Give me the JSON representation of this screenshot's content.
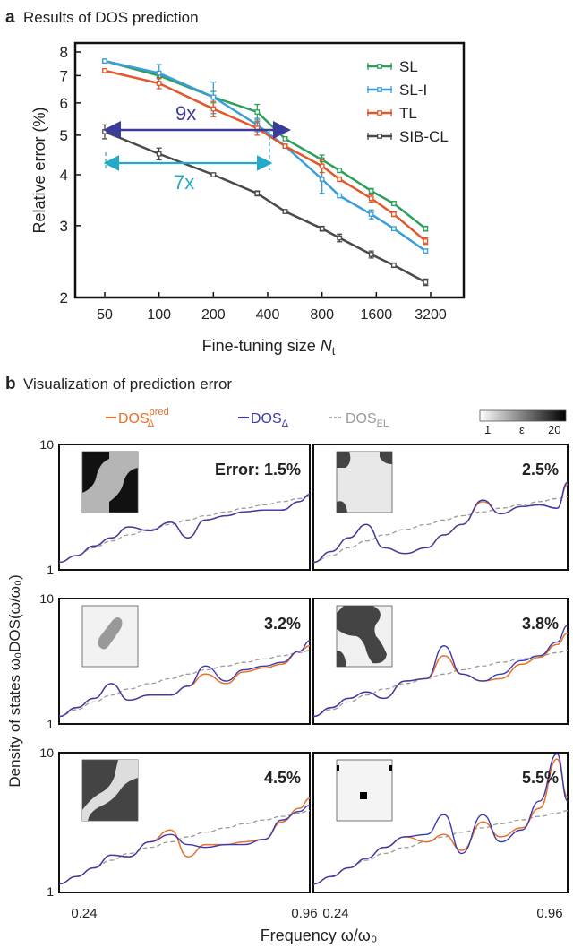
{
  "panel_a": {
    "letter": "a",
    "title": "Results of DOS prediction",
    "ylabel": "Relative error (%)",
    "xlabel_main": "Fine-tuning size ",
    "xlabel_var": "N",
    "xlabel_sub": "t",
    "annotation_9x": "9x",
    "annotation_7x": "7x",
    "colors": {
      "SL": "#2ca05a",
      "SL-I": "#3a9ed8",
      "TL": "#e2572b",
      "SIB-CL": "#4a4a4a",
      "arrow9": "#3b3b9a",
      "arrow7": "#25a9c9"
    }
  },
  "panel_b": {
    "letter": "b",
    "title": "Visualization of prediction error",
    "legend": {
      "pred_main": "DOS",
      "pred_sup": "pred",
      "pred_sub": "Δ",
      "true_main": "DOS",
      "true_sub": "Δ",
      "el_main": "DOS",
      "el_sub": "EL"
    },
    "colorbar": {
      "min": "1",
      "label": "ε",
      "max": "20"
    },
    "ylabel": "Density of states ω₀DOS(ω/ω₀)",
    "xlabel": "Frequency ω/ω₀",
    "ytick_top": "10",
    "ytick_bottom": "1",
    "xtick_left": "0.24",
    "xtick_right": "0.96",
    "colors": {
      "pred": "#e8702a",
      "true": "#3a3ab0",
      "el": "#9a9a9a"
    },
    "panel_labels": [
      "Error: 1.5%",
      "2.5%",
      "3.2%",
      "3.8%",
      "4.5%",
      "5.5%"
    ]
  },
  "chart_data": [
    {
      "type": "line",
      "title": "Results of DOS prediction",
      "xlabel": "Fine-tuning size Nt",
      "ylabel": "Relative error (%)",
      "x_scale": "log",
      "y_scale": "log",
      "xticks": [
        "50",
        "100",
        "200",
        "400",
        "800",
        "1600",
        "3200"
      ],
      "yticks": [
        "2",
        "3",
        "4",
        "5",
        "6",
        "7",
        "8"
      ],
      "x": [
        50,
        100,
        200,
        350,
        500,
        800,
        1000,
        1500,
        2000,
        3000
      ],
      "ylim": [
        2,
        8
      ],
      "legend_position": "top-right",
      "series": [
        {
          "name": "SL",
          "y": [
            7.6,
            7.0,
            6.2,
            5.7,
            4.9,
            4.35,
            4.1,
            3.65,
            3.4,
            2.95
          ],
          "err": [
            0.05,
            0.12,
            0.2,
            0.25,
            0.05,
            0.12,
            0.05,
            0.05,
            0.04,
            0.04
          ]
        },
        {
          "name": "SL-I",
          "y": [
            7.6,
            7.1,
            6.2,
            5.3,
            4.7,
            3.9,
            3.55,
            3.2,
            2.95,
            2.6
          ],
          "err": [
            0.05,
            0.35,
            0.55,
            0.2,
            0.05,
            0.3,
            0.03,
            0.08,
            0.03,
            0.03
          ]
        },
        {
          "name": "TL",
          "y": [
            7.2,
            6.7,
            5.8,
            5.2,
            4.7,
            4.2,
            3.9,
            3.5,
            3.2,
            2.75
          ],
          "err": [
            0.05,
            0.2,
            0.25,
            0.2,
            0.05,
            0.15,
            0.05,
            0.07,
            0.04,
            0.05
          ]
        },
        {
          "name": "SIB-CL",
          "y": [
            5.1,
            4.5,
            4.0,
            3.6,
            3.25,
            2.95,
            2.8,
            2.55,
            2.4,
            2.18
          ],
          "err": [
            0.2,
            0.15,
            0.03,
            0.05,
            0.03,
            0.04,
            0.06,
            0.05,
            0.03,
            0.04
          ]
        }
      ]
    },
    {
      "type": "line",
      "title": "Visualization of prediction error",
      "xlabel": "Frequency ω/ω₀",
      "ylabel": "Density of states ω₀DOS(ω/ω₀)",
      "y_scale": "log",
      "xlim": [
        0.24,
        0.96
      ],
      "ylim": [
        1,
        10
      ],
      "panels": [
        {
          "label": "Error: 1.5%",
          "x": [
            0.24,
            0.29,
            0.34,
            0.39,
            0.44,
            0.5,
            0.56,
            0.61,
            0.66,
            0.72,
            0.77,
            0.83,
            0.88,
            0.93,
            0.96
          ],
          "dos_pred": [
            1.15,
            1.3,
            1.55,
            1.8,
            2.2,
            2.05,
            2.4,
            1.8,
            2.5,
            2.7,
            2.9,
            3.0,
            3.0,
            3.5,
            4.0
          ],
          "dos_true": [
            1.15,
            1.3,
            1.55,
            1.8,
            2.2,
            2.05,
            2.4,
            1.8,
            2.5,
            2.7,
            2.9,
            3.0,
            3.0,
            3.5,
            4.0
          ],
          "dos_el": [
            1.15,
            1.3,
            1.5,
            1.7,
            1.9,
            2.1,
            2.3,
            2.5,
            2.7,
            2.9,
            3.1,
            3.3,
            3.5,
            3.7,
            3.85
          ]
        },
        {
          "label": "2.5%",
          "x": [
            0.24,
            0.29,
            0.34,
            0.39,
            0.44,
            0.5,
            0.56,
            0.61,
            0.66,
            0.72,
            0.77,
            0.83,
            0.88,
            0.93,
            0.96
          ],
          "dos_pred": [
            1.15,
            1.4,
            1.8,
            2.3,
            1.5,
            1.35,
            1.5,
            1.9,
            2.3,
            3.5,
            2.8,
            3.2,
            3.3,
            3.1,
            4.8
          ],
          "dos_true": [
            1.15,
            1.4,
            1.8,
            2.3,
            1.5,
            1.35,
            1.5,
            1.9,
            2.3,
            3.6,
            2.8,
            3.2,
            3.3,
            3.1,
            5.0
          ],
          "dos_el": [
            1.15,
            1.3,
            1.5,
            1.7,
            1.9,
            2.1,
            2.3,
            2.5,
            2.7,
            2.9,
            3.1,
            3.3,
            3.5,
            3.7,
            3.85
          ]
        },
        {
          "label": "3.2%",
          "x": [
            0.24,
            0.29,
            0.34,
            0.39,
            0.44,
            0.5,
            0.56,
            0.61,
            0.66,
            0.72,
            0.77,
            0.83,
            0.88,
            0.93,
            0.96
          ],
          "dos_pred": [
            1.15,
            1.35,
            1.6,
            2.1,
            1.55,
            1.7,
            1.7,
            2.0,
            2.5,
            2.1,
            2.6,
            2.8,
            3.0,
            3.8,
            4.2
          ],
          "dos_true": [
            1.15,
            1.35,
            1.6,
            2.1,
            1.55,
            1.7,
            1.7,
            2.0,
            2.9,
            2.2,
            2.7,
            2.9,
            3.1,
            3.8,
            4.6
          ],
          "dos_el": [
            1.15,
            1.3,
            1.5,
            1.7,
            1.9,
            2.1,
            2.3,
            2.5,
            2.7,
            2.9,
            3.1,
            3.3,
            3.5,
            3.7,
            3.85
          ]
        },
        {
          "label": "3.8%",
          "x": [
            0.24,
            0.29,
            0.34,
            0.39,
            0.44,
            0.5,
            0.56,
            0.61,
            0.66,
            0.72,
            0.77,
            0.83,
            0.88,
            0.93,
            0.96
          ],
          "dos_pred": [
            1.15,
            1.35,
            1.6,
            1.8,
            1.6,
            2.2,
            2.3,
            3.5,
            2.5,
            2.2,
            2.3,
            3.0,
            3.4,
            4.3,
            5.3
          ],
          "dos_true": [
            1.15,
            1.35,
            1.6,
            1.8,
            1.6,
            2.2,
            2.3,
            4.2,
            2.5,
            2.2,
            2.5,
            3.2,
            3.5,
            4.5,
            6.1
          ],
          "dos_el": [
            1.15,
            1.3,
            1.5,
            1.7,
            1.9,
            2.1,
            2.3,
            2.5,
            2.7,
            2.9,
            3.1,
            3.3,
            3.5,
            3.7,
            3.85
          ]
        },
        {
          "label": "4.5%",
          "x": [
            0.24,
            0.29,
            0.34,
            0.39,
            0.44,
            0.5,
            0.56,
            0.61,
            0.66,
            0.72,
            0.77,
            0.83,
            0.88,
            0.93,
            0.96
          ],
          "dos_pred": [
            1.15,
            1.3,
            1.5,
            1.85,
            1.8,
            2.3,
            2.8,
            1.8,
            2.2,
            2.2,
            2.3,
            2.4,
            3.2,
            4.0,
            4.7
          ],
          "dos_true": [
            1.15,
            1.3,
            1.5,
            1.85,
            1.8,
            2.3,
            2.6,
            2.2,
            2.1,
            2.2,
            2.2,
            2.4,
            3.3,
            3.8,
            4.2
          ],
          "dos_el": [
            1.15,
            1.3,
            1.5,
            1.7,
            1.9,
            2.1,
            2.3,
            2.5,
            2.7,
            2.9,
            3.1,
            3.3,
            3.5,
            3.7,
            3.85
          ]
        },
        {
          "label": "5.5%",
          "x": [
            0.24,
            0.29,
            0.34,
            0.39,
            0.44,
            0.5,
            0.56,
            0.61,
            0.66,
            0.72,
            0.77,
            0.83,
            0.88,
            0.93,
            0.96
          ],
          "dos_pred": [
            1.15,
            1.3,
            1.5,
            1.75,
            2.1,
            2.5,
            2.3,
            2.6,
            2.0,
            3.2,
            2.5,
            2.9,
            4.0,
            9.0,
            4.8
          ],
          "dos_true": [
            1.15,
            1.3,
            1.5,
            1.75,
            2.1,
            2.5,
            2.6,
            3.6,
            1.9,
            3.6,
            2.3,
            2.8,
            4.5,
            9.8,
            4.5
          ],
          "dos_el": [
            1.15,
            1.3,
            1.5,
            1.7,
            1.9,
            2.1,
            2.3,
            2.5,
            2.7,
            2.9,
            3.1,
            3.3,
            3.5,
            3.7,
            3.85
          ]
        }
      ]
    }
  ]
}
